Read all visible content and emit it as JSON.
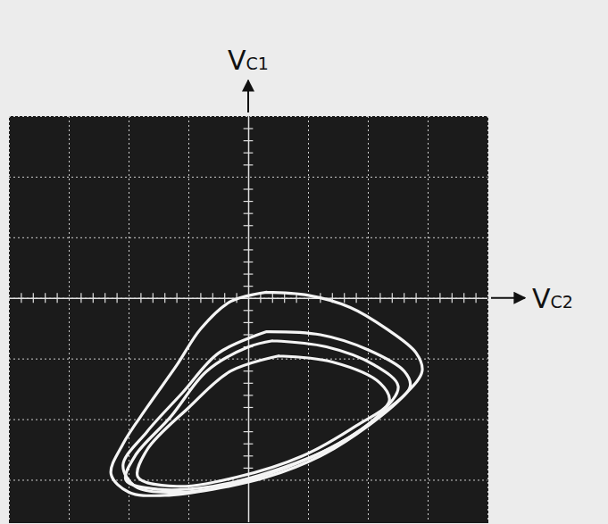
{
  "chart_data": {
    "type": "line",
    "x_label": "VC2",
    "y_label": "VC1",
    "xlim": [
      -4,
      4
    ],
    "ylim": [
      -3.7,
      3
    ],
    "xticks": [
      -4,
      -3,
      -2,
      -1,
      0,
      1,
      2,
      3,
      4
    ],
    "yticks": [
      -3,
      -2,
      -1,
      0,
      1,
      2,
      3
    ],
    "grid": true,
    "tick_labels": false,
    "series": [
      {
        "color": "#f4f4f4",
        "x": [
          0.3,
          1.0,
          1.7,
          2.3,
          2.8,
          2.9,
          2.6,
          2.0,
          1.2,
          0.3,
          -0.6,
          -1.4,
          -2.0,
          -2.3,
          -2.1,
          -1.7,
          -1.2,
          -0.8,
          -0.3,
          0.3
        ],
        "values": [
          0.1,
          0.05,
          -0.15,
          -0.5,
          -0.9,
          -1.2,
          -1.6,
          -2.1,
          -2.6,
          -2.95,
          -3.15,
          -3.25,
          -3.2,
          -2.9,
          -2.4,
          -1.8,
          -1.1,
          -0.5,
          -0.05,
          0.1
        ]
      },
      {
        "color": "#f4f4f4",
        "x": [
          0.3,
          1.2,
          2.0,
          2.6,
          2.7,
          2.3,
          1.5,
          0.6,
          -0.4,
          -1.3,
          -1.9,
          -2.1,
          -1.7,
          -1.1,
          -0.5,
          0.3
        ],
        "values": [
          -0.55,
          -0.6,
          -0.85,
          -1.2,
          -1.45,
          -1.85,
          -2.4,
          -2.8,
          -3.1,
          -3.2,
          -3.1,
          -2.75,
          -2.2,
          -1.55,
          -0.9,
          -0.55
        ]
      },
      {
        "color": "#f4f4f4",
        "x": [
          0.4,
          1.3,
          2.1,
          2.5,
          2.2,
          1.4,
          0.4,
          -0.6,
          -1.5,
          -2.05,
          -1.9,
          -1.3,
          -0.7,
          0.0,
          0.4
        ],
        "values": [
          -0.7,
          -0.8,
          -1.1,
          -1.45,
          -1.9,
          -2.45,
          -2.85,
          -3.1,
          -3.15,
          -3.0,
          -2.6,
          -1.95,
          -1.2,
          -0.8,
          -0.7
        ]
      },
      {
        "color": "#f4f4f4",
        "x": [
          0.5,
          1.4,
          2.2,
          2.35,
          1.8,
          0.9,
          -0.2,
          -1.2,
          -1.85,
          -1.7,
          -1.0,
          -0.3,
          0.5
        ],
        "values": [
          -0.95,
          -1.05,
          -1.4,
          -1.7,
          -2.1,
          -2.6,
          -2.95,
          -3.1,
          -2.95,
          -2.5,
          -1.8,
          -1.2,
          -0.95
        ]
      }
    ]
  }
}
